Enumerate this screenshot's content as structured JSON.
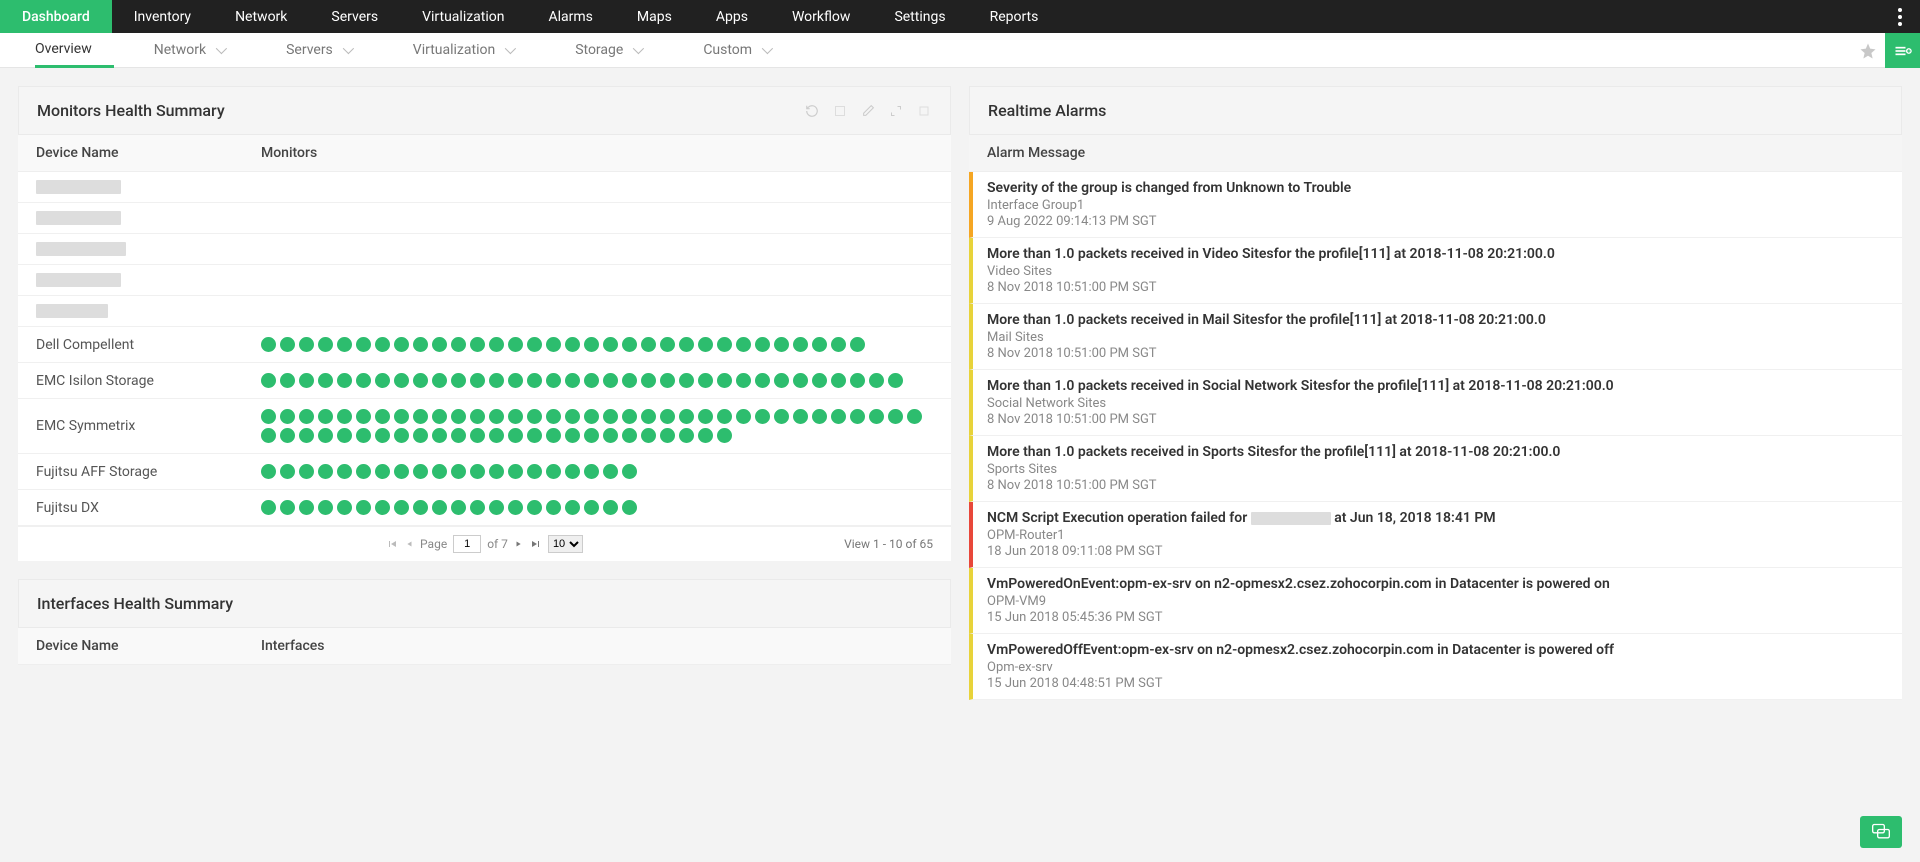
{
  "colors": {
    "accent": "#2dbd6e",
    "topnav_bg": "#212121",
    "body_bg": "#f3f3f3",
    "panel_header_bg": "#f5f5f5",
    "monitor_dot": "#2dbd6e",
    "sev_orange": "#f5a623",
    "sev_yellow": "#e8d33a",
    "sev_red": "#e8473a",
    "redacted": "#dddddd"
  },
  "topnav": {
    "items": [
      {
        "label": "Dashboard",
        "active": true
      },
      {
        "label": "Inventory"
      },
      {
        "label": "Network"
      },
      {
        "label": "Servers"
      },
      {
        "label": "Virtualization"
      },
      {
        "label": "Alarms"
      },
      {
        "label": "Maps"
      },
      {
        "label": "Apps"
      },
      {
        "label": "Workflow"
      },
      {
        "label": "Settings"
      },
      {
        "label": "Reports"
      }
    ]
  },
  "subnav": {
    "items": [
      {
        "label": "Overview",
        "active": true,
        "dropdown": false
      },
      {
        "label": "Network",
        "dropdown": true
      },
      {
        "label": "Servers",
        "dropdown": true
      },
      {
        "label": "Virtualization",
        "dropdown": true
      },
      {
        "label": "Storage",
        "dropdown": true
      },
      {
        "label": "Custom",
        "dropdown": true
      }
    ]
  },
  "monitors_panel": {
    "title": "Monitors Health Summary",
    "columns": {
      "device": "Device Name",
      "monitors": "Monitors"
    },
    "rows": [
      {
        "device_redacted": true,
        "redacted_width": 85,
        "monitor_count": 0
      },
      {
        "device_redacted": true,
        "redacted_width": 85,
        "monitor_count": 0
      },
      {
        "device_redacted": true,
        "redacted_width": 90,
        "monitor_count": 0
      },
      {
        "device_redacted": true,
        "redacted_width": 85,
        "monitor_count": 0
      },
      {
        "device_redacted": true,
        "redacted_width": 72,
        "monitor_count": 0
      },
      {
        "device": "Dell Compellent",
        "monitor_count": 32
      },
      {
        "device": "EMC Isilon Storage",
        "monitor_count": 34
      },
      {
        "device": "EMC Symmetrix",
        "monitor_count": 60
      },
      {
        "device": "Fujitsu AFF Storage",
        "monitor_count": 20
      },
      {
        "device": "Fujitsu DX",
        "monitor_count": 20
      }
    ],
    "paginator": {
      "page_label": "Page",
      "page": "1",
      "of": "of 7",
      "page_size": "10",
      "view_info": "View 1 - 10 of 65"
    }
  },
  "interfaces_panel": {
    "title": "Interfaces Health Summary",
    "columns": {
      "device": "Device Name",
      "interfaces": "Interfaces"
    }
  },
  "alarms_panel": {
    "title": "Realtime Alarms",
    "header": "Alarm Message",
    "rows": [
      {
        "severity": "orange",
        "msg": "Severity of the group is changed from Unknown to Trouble",
        "src": "Interface Group1",
        "time": "9 Aug 2022 09:14:13 PM SGT"
      },
      {
        "severity": "yellow",
        "msg": "More than 1.0 packets received in Video Sitesfor the profile[111] at 2018-11-08 20:21:00.0",
        "src": "Video Sites",
        "time": "8 Nov 2018 10:51:00 PM SGT"
      },
      {
        "severity": "yellow",
        "msg": "More than 1.0 packets received in Mail Sitesfor the profile[111] at 2018-11-08 20:21:00.0",
        "src": "Mail Sites",
        "time": "8 Nov 2018 10:51:00 PM SGT"
      },
      {
        "severity": "yellow",
        "msg": "More than 1.0 packets received in Social Network Sitesfor the profile[111] at 2018-11-08 20:21:00.0",
        "src": "Social Network Sites",
        "time": "8 Nov 2018 10:51:00 PM SGT"
      },
      {
        "severity": "yellow",
        "msg": "More than 1.0 packets received in Sports Sitesfor the profile[111] at 2018-11-08 20:21:00.0",
        "src": "Sports Sites",
        "time": "8 Nov 2018 10:51:00 PM SGT"
      },
      {
        "severity": "red",
        "msg_pre": "NCM Script Execution operation failed for ",
        "msg_redacted_width": 80,
        "msg_post": " at Jun 18, 2018 18:41 PM",
        "src": "OPM-Router1",
        "time": "18 Jun 2018 09:11:08 PM SGT"
      },
      {
        "severity": "yellow",
        "msg": "VmPoweredOnEvent:opm-ex-srv on n2-opmesx2.csez.zohocorpin.com in Datacenter is powered on",
        "src": "OPM-VM9",
        "time": "15 Jun 2018 05:45:36 PM SGT"
      },
      {
        "severity": "yellow",
        "msg": "VmPoweredOffEvent:opm-ex-srv on n2-opmesx2.csez.zohocorpin.com in Datacenter is powered off",
        "src": "Opm-ex-srv",
        "time": "15 Jun 2018 04:48:51 PM SGT"
      }
    ]
  }
}
